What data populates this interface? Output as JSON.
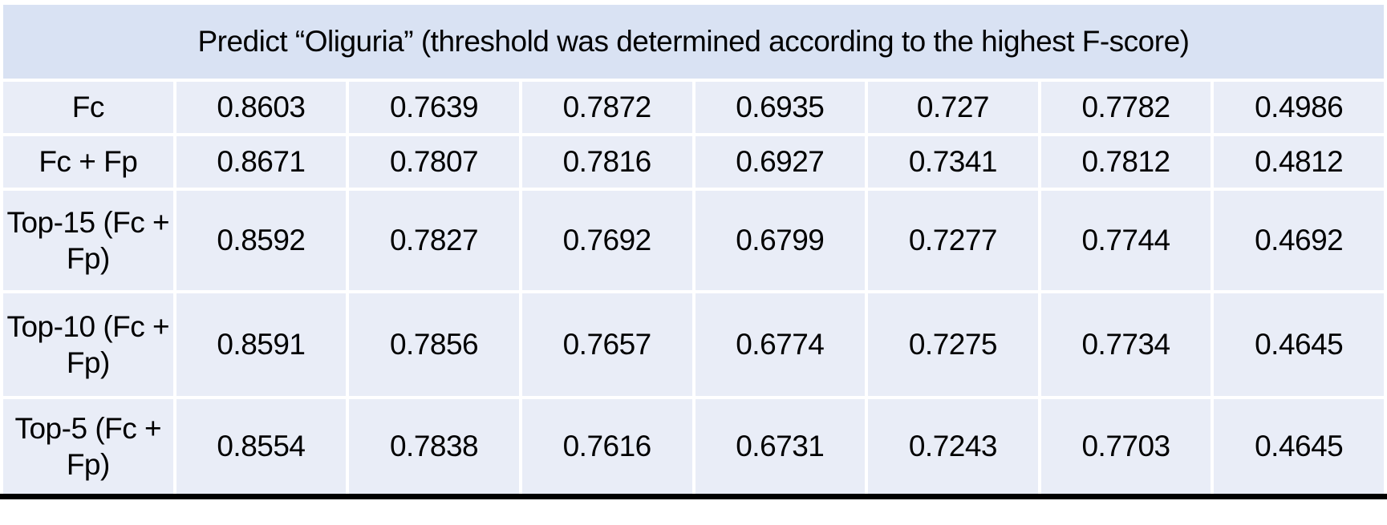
{
  "title": "Predict “Oliguria” (threshold was determined according to the highest F-score)",
  "colors": {
    "title_row_bg": "#d9e2f3",
    "body_row_bg": "#e9edf7",
    "gridline": "#ffffff",
    "text": "#000000",
    "bottom_border": "#000000"
  },
  "chart_data": {
    "type": "table",
    "title": "Predict “Oliguria” (threshold was determined according to the highest F-score)",
    "row_labels": [
      "Fc",
      "Fc + Fp",
      "Top-15 (Fc + Fp)",
      "Top-10 (Fc + Fp)",
      "Top-5 (Fc + Fp)"
    ],
    "num_data_columns": 7,
    "column_headers": [],
    "rows": [
      [
        0.8603,
        0.7639,
        0.7872,
        0.6935,
        0.727,
        0.7782,
        0.4986
      ],
      [
        0.8671,
        0.7807,
        0.7816,
        0.6927,
        0.7341,
        0.7812,
        0.4812
      ],
      [
        0.8592,
        0.7827,
        0.7692,
        0.6799,
        0.7277,
        0.7744,
        0.4692
      ],
      [
        0.8591,
        0.7856,
        0.7657,
        0.6774,
        0.7275,
        0.7734,
        0.4645
      ],
      [
        0.8554,
        0.7838,
        0.7616,
        0.6731,
        0.7243,
        0.7703,
        0.4645
      ]
    ],
    "layout": {
      "grid": "white gridlines between cells",
      "title_row_merged": true,
      "bottom_border": "thick black"
    }
  }
}
